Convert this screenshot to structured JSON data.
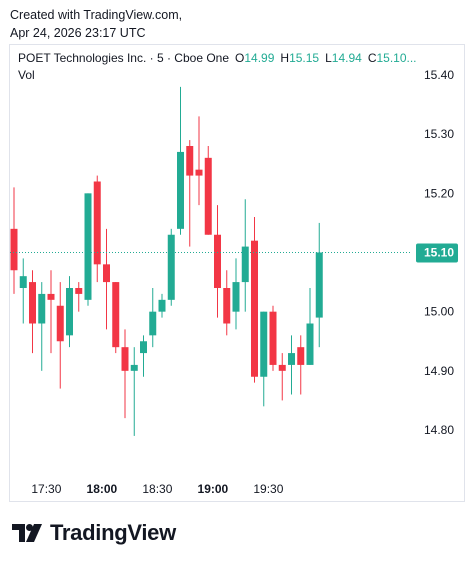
{
  "caption": {
    "line1": "Created with TradingView.com,",
    "line2": "Apr 24, 2026 23:17 UTC"
  },
  "legend": {
    "symbol": "POET Technologies Inc. · 5 · Cboe One",
    "open_label": "O",
    "open_value": "14.99",
    "high_label": "H",
    "high_value": "15.15",
    "low_label": "L",
    "low_value": "14.94",
    "close_label": "C",
    "close_value": "15.10...",
    "volume_label": "Vol"
  },
  "last_price": {
    "label": "15.10",
    "color": "#22ab94"
  },
  "brand": {
    "name": "TradingView"
  },
  "colors": {
    "up": "#22ab94",
    "down": "#f23645",
    "grid": "#e0e3eb"
  },
  "chart_data": {
    "type": "candlestick",
    "timeframe": "5",
    "y_ticks": [
      "15.40",
      "15.30",
      "15.20",
      "15.10",
      "15.00",
      "14.90",
      "14.80"
    ],
    "ylim": [
      14.72,
      15.44
    ],
    "x_ticks": [
      {
        "label": "17:30",
        "bold": false,
        "index": 3.5
      },
      {
        "label": "18:00",
        "bold": true,
        "index": 9.5
      },
      {
        "label": "18:30",
        "bold": false,
        "index": 15.5
      },
      {
        "label": "19:00",
        "bold": true,
        "index": 21.5
      },
      {
        "label": "19:30",
        "bold": false,
        "index": 27.5
      }
    ],
    "candles": [
      {
        "o": 15.14,
        "h": 15.21,
        "l": 15.03,
        "c": 15.07
      },
      {
        "o": 15.04,
        "h": 15.09,
        "l": 14.98,
        "c": 15.06
      },
      {
        "o": 15.05,
        "h": 15.07,
        "l": 14.93,
        "c": 14.98
      },
      {
        "o": 14.98,
        "h": 15.05,
        "l": 14.9,
        "c": 15.03
      },
      {
        "o": 15.03,
        "h": 15.07,
        "l": 14.93,
        "c": 15.02
      },
      {
        "o": 15.01,
        "h": 15.05,
        "l": 14.87,
        "c": 14.95
      },
      {
        "o": 14.96,
        "h": 15.06,
        "l": 14.94,
        "c": 15.04
      },
      {
        "o": 15.04,
        "h": 15.05,
        "l": 15.0,
        "c": 15.03
      },
      {
        "o": 15.02,
        "h": 15.2,
        "l": 15.01,
        "c": 15.2
      },
      {
        "o": 15.22,
        "h": 15.23,
        "l": 15.05,
        "c": 15.08
      },
      {
        "o": 15.08,
        "h": 15.14,
        "l": 14.97,
        "c": 15.05
      },
      {
        "o": 15.05,
        "h": 15.05,
        "l": 14.93,
        "c": 14.94
      },
      {
        "o": 14.94,
        "h": 14.97,
        "l": 14.82,
        "c": 14.9
      },
      {
        "o": 14.9,
        "h": 14.94,
        "l": 14.79,
        "c": 14.91
      },
      {
        "o": 14.93,
        "h": 14.96,
        "l": 14.89,
        "c": 14.95
      },
      {
        "o": 14.96,
        "h": 15.04,
        "l": 14.94,
        "c": 15.0
      },
      {
        "o": 15.0,
        "h": 15.03,
        "l": 14.99,
        "c": 15.02
      },
      {
        "o": 15.02,
        "h": 15.14,
        "l": 15.01,
        "c": 15.13
      },
      {
        "o": 15.14,
        "h": 15.38,
        "l": 15.13,
        "c": 15.27
      },
      {
        "o": 15.28,
        "h": 15.29,
        "l": 15.11,
        "c": 15.23
      },
      {
        "o": 15.24,
        "h": 15.33,
        "l": 15.18,
        "c": 15.23
      },
      {
        "o": 15.26,
        "h": 15.28,
        "l": 15.13,
        "c": 15.13
      },
      {
        "o": 15.13,
        "h": 15.18,
        "l": 14.99,
        "c": 15.04
      },
      {
        "o": 15.04,
        "h": 15.07,
        "l": 14.96,
        "c": 14.98
      },
      {
        "o": 15.0,
        "h": 15.09,
        "l": 14.97,
        "c": 15.05
      },
      {
        "o": 15.05,
        "h": 15.19,
        "l": 15.0,
        "c": 15.11
      },
      {
        "o": 15.12,
        "h": 15.16,
        "l": 14.88,
        "c": 14.89
      },
      {
        "o": 14.89,
        "h": 15.0,
        "l": 14.84,
        "c": 15.0
      },
      {
        "o": 15.0,
        "h": 15.01,
        "l": 14.9,
        "c": 14.91
      },
      {
        "o": 14.91,
        "h": 14.93,
        "l": 14.85,
        "c": 14.9
      },
      {
        "o": 14.91,
        "h": 14.96,
        "l": 14.86,
        "c": 14.93
      },
      {
        "o": 14.94,
        "h": 14.96,
        "l": 14.86,
        "c": 14.91
      },
      {
        "o": 14.91,
        "h": 15.04,
        "l": 14.91,
        "c": 14.98
      },
      {
        "o": 14.99,
        "h": 15.15,
        "l": 14.94,
        "c": 15.1
      }
    ]
  }
}
